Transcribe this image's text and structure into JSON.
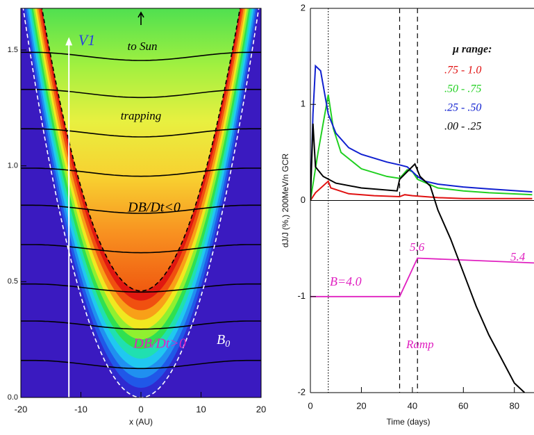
{
  "chart_data": [
    {
      "type": "contour",
      "xlabel": "x (AU)",
      "xlim": [
        -20,
        20
      ],
      "ylim": [
        0,
        1.68
      ],
      "xticks": [
        -20,
        -10,
        0,
        10,
        20
      ],
      "yticks": [
        {
          "value": 0,
          "label": "0.0"
        },
        {
          "value": 0.5,
          "label": "0.5"
        },
        {
          "value": 1,
          "label": "1.0"
        },
        {
          "value": 1.5,
          "label": "1.5"
        }
      ],
      "field_lines": [
        0.16,
        0.33,
        0.49,
        0.66,
        0.83,
        0.99,
        1.16,
        1.33,
        1.49
      ],
      "background": "#3a1ac0",
      "band_colors": [
        "#2f2ad0",
        "#2058e8",
        "#2090f0",
        "#20c8f0",
        "#20e0b0",
        "#30e050",
        "#90f030",
        "#f0e820",
        "#f8a018",
        "#f05010",
        "#e01810"
      ],
      "interior_colors": [
        "#f05a10",
        "#f89020",
        "#f8d030",
        "#e8f040",
        "#a0f040",
        "#50e050"
      ],
      "annotations": [
        "V1",
        "to Sun",
        "trapping",
        "DB/Dt<0",
        "DB/Dt>0"
      ],
      "b0": {
        "text": "B",
        "subscript": "0"
      }
    },
    {
      "type": "line",
      "xlabel": "Time (days)",
      "ylabel": "dJ/J (%,) 200MeV/n GCR",
      "xlim": [
        0,
        87.7
      ],
      "ylim": [
        -2,
        2
      ],
      "xticks": [
        0,
        20,
        40,
        60,
        80
      ],
      "yticks": [
        -2,
        -1,
        0,
        1,
        2
      ],
      "legend": "upper right",
      "legend_title": "μ range:",
      "series": [
        {
          "name": ".75 - 1.0",
          "color": "#e01010",
          "x": [
            0,
            2,
            7,
            8,
            15,
            25,
            35,
            37,
            40,
            50,
            60,
            80,
            87
          ],
          "values": [
            0,
            0.08,
            0.2,
            0.13,
            0.07,
            0.05,
            0.04,
            0.06,
            0.05,
            0.03,
            0.02,
            0.02,
            0.02
          ]
        },
        {
          "name": ".50 - .75",
          "color": "#20d020",
          "x": [
            0,
            3,
            7,
            9,
            12,
            20,
            30,
            35,
            38,
            40,
            42,
            50,
            60,
            70,
            87
          ],
          "values": [
            0,
            0.5,
            1.1,
            0.75,
            0.5,
            0.33,
            0.25,
            0.23,
            0.32,
            0.3,
            0.22,
            0.13,
            0.1,
            0.08,
            0.06
          ]
        },
        {
          "name": ".25 - .50",
          "color": "#1020d0",
          "x": [
            0,
            1,
            2,
            4,
            7,
            10,
            15,
            20,
            30,
            35,
            38,
            40,
            42,
            45,
            50,
            60,
            70,
            87
          ],
          "values": [
            0,
            0.9,
            1.4,
            1.35,
            0.9,
            0.7,
            0.55,
            0.48,
            0.4,
            0.37,
            0.35,
            0.3,
            0.25,
            0.2,
            0.17,
            0.14,
            0.12,
            0.09
          ]
        },
        {
          "name": ".00 - .25",
          "color": "#000000",
          "x": [
            0,
            1,
            2,
            5,
            10,
            20,
            34,
            35,
            38,
            41,
            43,
            47,
            50,
            55,
            60,
            65,
            70,
            75,
            80,
            84
          ],
          "values": [
            0,
            0.8,
            0.35,
            0.25,
            0.18,
            0.13,
            0.1,
            0.22,
            0.3,
            0.38,
            0.25,
            0.15,
            -0.1,
            -0.4,
            -0.75,
            -1.1,
            -1.4,
            -1.65,
            -1.9,
            -2
          ]
        }
      ],
      "b_profile": {
        "color": "#e020c0",
        "x": [
          0,
          35,
          42,
          87.7
        ],
        "values": [
          -1,
          -1,
          -0.6,
          -0.65
        ],
        "labels": [
          "B=4.0",
          "5.6",
          "5.4",
          "Ramp"
        ]
      },
      "vlines": [
        {
          "x": 7,
          "style": "dotted"
        },
        {
          "x": 35,
          "style": "dashed"
        },
        {
          "x": 42,
          "style": "dashed"
        }
      ],
      "zero_line": 0
    }
  ]
}
